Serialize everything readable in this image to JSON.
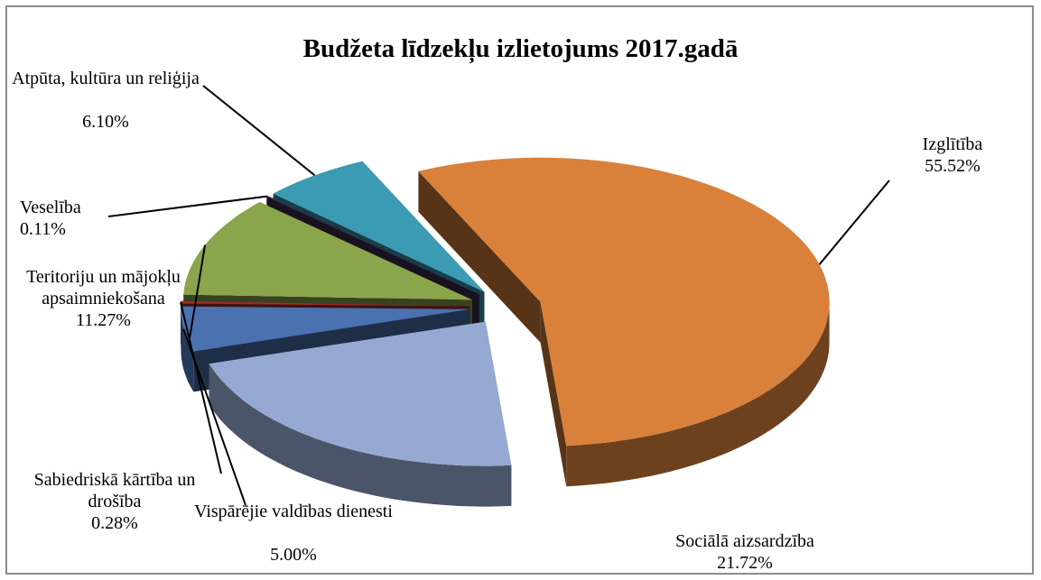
{
  "chart_data": {
    "type": "pie3d",
    "title": "Budžeta līdzekļu izlietojums 2017.gadā",
    "categories": [
      "Izglītība",
      "Sociālā aizsardzība",
      "Vispārējie valdības dienesti",
      "Sabiedriskā kārtība un drošība",
      "Teritoriju un mājokļu apsaimniekošana",
      "Veselība",
      "Atpūta, kultūra un reliģija"
    ],
    "values": [
      55.52,
      21.72,
      5.0,
      0.28,
      11.27,
      0.11,
      6.1
    ],
    "value_labels": [
      "55.52%",
      "21.72%",
      "5.00%",
      "0.28%",
      "11.27%",
      "0.11%",
      "6.10%"
    ],
    "colors": [
      "#d9813b",
      "#95a9d2",
      "#4a72b0",
      "#9a2f28",
      "#8ba54c",
      "#3b2d4f",
      "#3a9bb3"
    ]
  }
}
